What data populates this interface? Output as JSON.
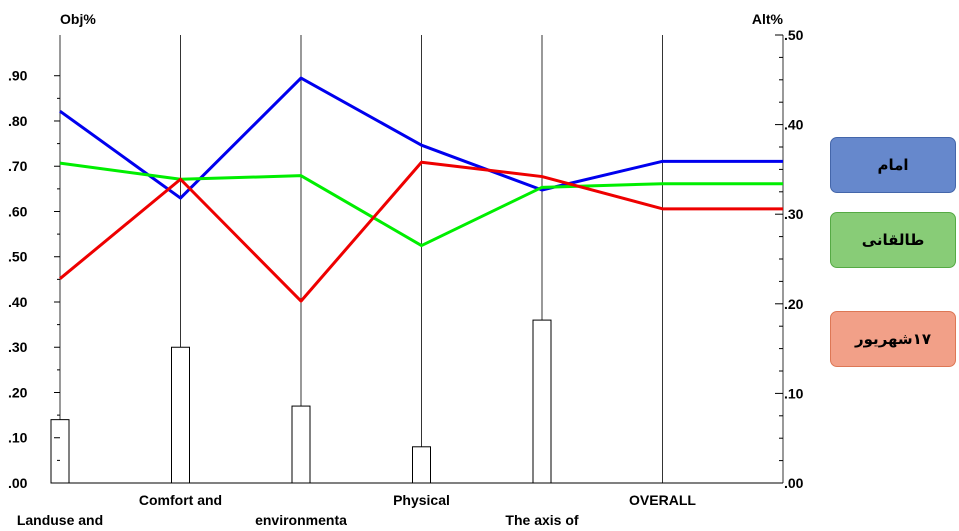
{
  "chart_data": {
    "type": "line",
    "left_axis_title": "Obj%",
    "right_axis_title": "Alt%",
    "left_ticks": [
      ".00",
      ".10",
      ".20",
      ".30",
      ".40",
      ".50",
      ".60",
      ".70",
      ".80",
      ".90"
    ],
    "right_ticks": [
      ".00",
      ".10",
      ".20",
      ".30",
      ".40",
      ".50"
    ],
    "categories_row1": [
      "Comfort and",
      "Physical",
      "OVERALL"
    ],
    "categories_row2": [
      "Landuse and",
      "environmenta",
      "The axis of"
    ],
    "x_positions": 7,
    "bars": [
      {
        "x": 0,
        "value": 0.14
      },
      {
        "x": 1,
        "value": 0.3
      },
      {
        "x": 2,
        "value": 0.17
      },
      {
        "x": 3,
        "value": 0.08
      },
      {
        "x": 4,
        "value": 0.36
      }
    ],
    "y_range_right": [
      0,
      0.5
    ],
    "series": [
      {
        "name": "امام",
        "color": "#0000ee",
        "values": [
          0.415,
          0.318,
          0.452,
          0.377,
          0.327,
          0.359,
          0.359
        ]
      },
      {
        "name": "طالقانی",
        "color": "#00ee00",
        "values": [
          0.357,
          0.339,
          0.343,
          0.265,
          0.33,
          0.334,
          0.334
        ]
      },
      {
        "name": "۱۷شهریور",
        "color": "#ee0000",
        "values": [
          0.228,
          0.339,
          0.203,
          0.358,
          0.342,
          0.306,
          0.306
        ]
      }
    ],
    "legend": [
      {
        "label": "امام",
        "color": "#6688cc",
        "border": "#4466aa"
      },
      {
        "label": "طالقانی",
        "color": "#88cc77",
        "border": "#55aa44"
      },
      {
        "label": "۱۷شهریور",
        "color": "#f2a088",
        "border": "#dd7755"
      }
    ]
  }
}
